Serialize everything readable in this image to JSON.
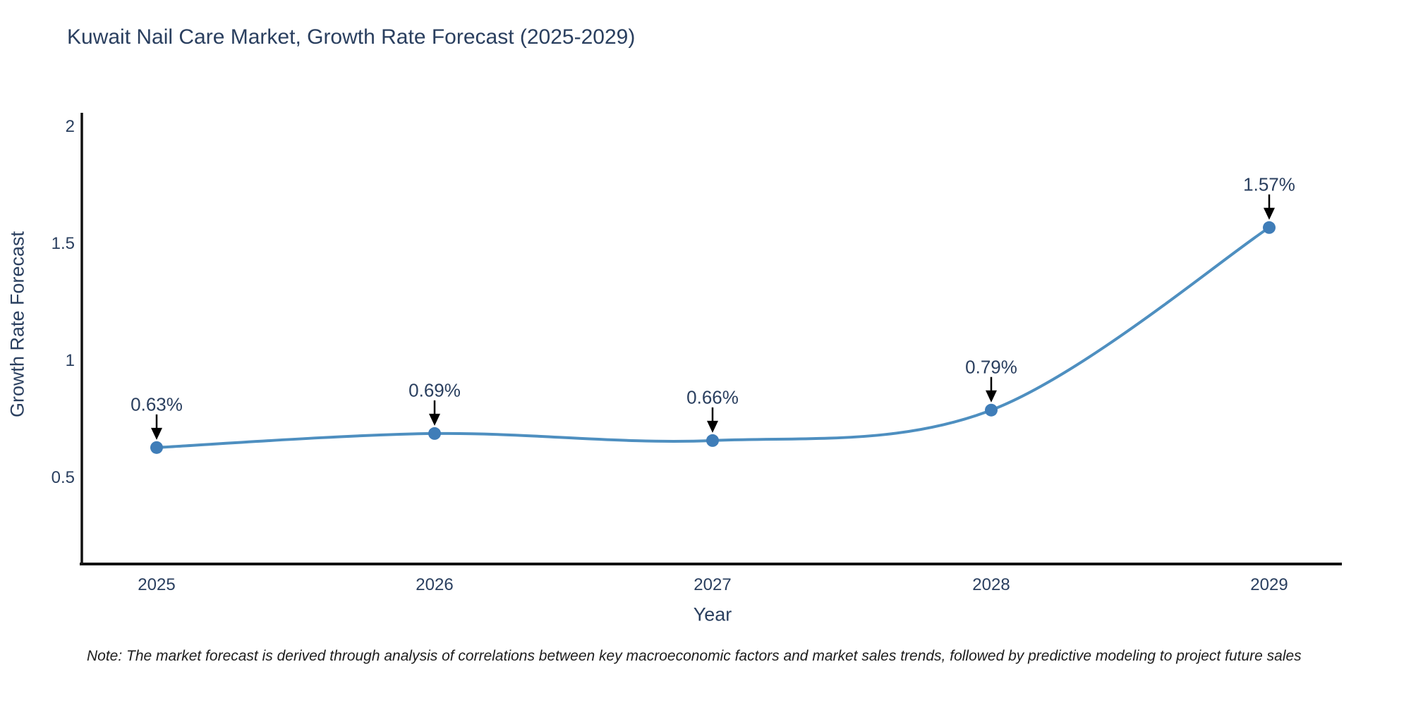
{
  "title": "Kuwait Nail Care Market, Growth Rate Forecast (2025-2029)",
  "note": "Note: The market forecast is derived through analysis of correlations between key macroeconomic factors and market sales trends, followed by predictive modeling to project future sales",
  "chart_data": {
    "type": "line",
    "line_shape": "spline",
    "markers": true,
    "grid": false,
    "legend": "none",
    "title": "Kuwait Nail Care Market, Growth Rate Forecast (2025-2029)",
    "xlabel": "Year",
    "ylabel": "Growth Rate Forecast",
    "categories": [
      "2025",
      "2026",
      "2027",
      "2028",
      "2029"
    ],
    "values": [
      0.63,
      0.69,
      0.66,
      0.79,
      1.57
    ],
    "point_labels": [
      "0.63%",
      "0.69%",
      "0.66%",
      "0.79%",
      "1.57%"
    ],
    "y_ticks": [
      2,
      1.5,
      1,
      0.5
    ],
    "y_tick_labels": [
      "2",
      "1.5",
      "1",
      "0.5"
    ],
    "ylim": [
      0.13,
      2.06
    ],
    "annotation_style": "black-down-arrow",
    "colors": {
      "line": "#4e8fc0",
      "marker": "#3f7db8",
      "text": "#2a3f5f",
      "axis": "#111111",
      "arrow": "#000000",
      "background": "#ffffff"
    }
  }
}
